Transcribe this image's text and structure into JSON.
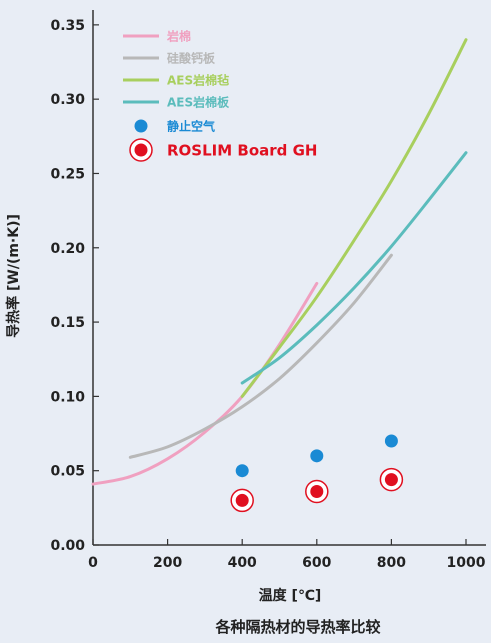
{
  "chart_data": {
    "type": "line",
    "xlabel": "温度 [℃]",
    "ylabel": "导热率 [W/(m·K)]",
    "caption": "各种隔热材的导热率比较",
    "xlim": [
      0,
      1000
    ],
    "ylim": [
      0,
      0.36
    ],
    "xticks": [
      0,
      200,
      400,
      600,
      800,
      1000
    ],
    "xtick_labels": [
      "0",
      "200",
      "400",
      "600",
      "800",
      "1000"
    ],
    "yticks": [
      0,
      0.05,
      0.1,
      0.15,
      0.2,
      0.25,
      0.3,
      0.35
    ],
    "ytick_labels": [
      "0.00",
      "0.05",
      "0.10",
      "0.15",
      "0.20",
      "0.25",
      "0.30",
      "0.35"
    ],
    "grid": false,
    "legend_position": "top-left",
    "series": [
      {
        "name": "岩棉",
        "kind": "line",
        "color": "#f0a0c0",
        "x": [
          0,
          100,
          200,
          300,
          400,
          500,
          600
        ],
        "y": [
          0.041,
          0.046,
          0.058,
          0.076,
          0.1,
          0.135,
          0.176
        ]
      },
      {
        "name": "硅酸钙板",
        "kind": "line",
        "color": "#b8b8b8",
        "x": [
          100,
          200,
          300,
          400,
          500,
          600,
          700,
          800
        ],
        "y": [
          0.059,
          0.066,
          0.078,
          0.093,
          0.112,
          0.136,
          0.163,
          0.195
        ]
      },
      {
        "name": "AES岩棉毡",
        "kind": "line",
        "color": "#a8cf5e",
        "x": [
          400,
          500,
          600,
          700,
          800,
          900,
          1000
        ],
        "y": [
          0.1,
          0.133,
          0.167,
          0.205,
          0.245,
          0.29,
          0.34
        ]
      },
      {
        "name": "AES岩棉板",
        "kind": "line",
        "color": "#5bbcbc",
        "x": [
          400,
          500,
          600,
          700,
          800,
          900,
          1000
        ],
        "y": [
          0.109,
          0.126,
          0.148,
          0.173,
          0.201,
          0.232,
          0.264
        ]
      },
      {
        "name": "静止空气",
        "kind": "scatter",
        "color": "#1a8ad4",
        "x": [
          400,
          600,
          800
        ],
        "y": [
          0.05,
          0.06,
          0.07
        ]
      },
      {
        "name": "ROSLIM Board GH",
        "kind": "scatter-ring",
        "color": "#e01020",
        "x": [
          400,
          600,
          800
        ],
        "y": [
          0.03,
          0.036,
          0.044
        ]
      }
    ]
  }
}
